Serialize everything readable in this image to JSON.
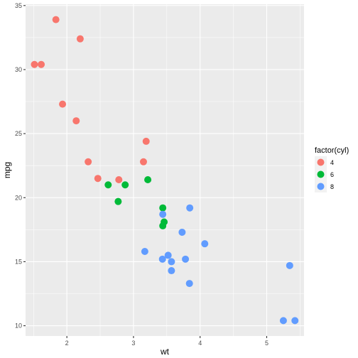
{
  "chart_data": {
    "type": "scatter",
    "xlabel": "wt",
    "ylabel": "mpg",
    "xlim": [
      1.38,
      5.56
    ],
    "ylim": [
      9.2,
      35.1
    ],
    "x_ticks": [
      2,
      3,
      4,
      5
    ],
    "y_ticks": [
      10,
      15,
      20,
      25,
      30,
      35
    ],
    "grid": true,
    "legend": {
      "title": "factor(cyl)",
      "placement": "right"
    },
    "series": [
      {
        "name": "4",
        "color": "#F8766D",
        "points": [
          {
            "x": 2.32,
            "y": 22.8
          },
          {
            "x": 3.19,
            "y": 24.4
          },
          {
            "x": 3.15,
            "y": 22.8
          },
          {
            "x": 2.2,
            "y": 32.4
          },
          {
            "x": 1.615,
            "y": 30.4
          },
          {
            "x": 1.835,
            "y": 33.9
          },
          {
            "x": 2.465,
            "y": 21.5
          },
          {
            "x": 1.935,
            "y": 27.3
          },
          {
            "x": 2.14,
            "y": 26.0
          },
          {
            "x": 1.513,
            "y": 30.4
          },
          {
            "x": 2.78,
            "y": 21.4
          }
        ]
      },
      {
        "name": "6",
        "color": "#00BA38",
        "points": [
          {
            "x": 2.62,
            "y": 21.0
          },
          {
            "x": 2.875,
            "y": 21.0
          },
          {
            "x": 3.215,
            "y": 21.4
          },
          {
            "x": 3.46,
            "y": 18.1
          },
          {
            "x": 3.44,
            "y": 19.2
          },
          {
            "x": 3.44,
            "y": 17.8
          },
          {
            "x": 2.77,
            "y": 19.7
          }
        ]
      },
      {
        "name": "8",
        "color": "#619CFF",
        "points": [
          {
            "x": 3.44,
            "y": 18.7
          },
          {
            "x": 3.57,
            "y": 14.3
          },
          {
            "x": 4.07,
            "y": 16.4
          },
          {
            "x": 3.73,
            "y": 17.3
          },
          {
            "x": 3.78,
            "y": 15.2
          },
          {
            "x": 5.25,
            "y": 10.4
          },
          {
            "x": 5.424,
            "y": 10.4
          },
          {
            "x": 5.345,
            "y": 14.7
          },
          {
            "x": 3.52,
            "y": 15.5
          },
          {
            "x": 3.435,
            "y": 15.2
          },
          {
            "x": 3.84,
            "y": 13.3
          },
          {
            "x": 3.845,
            "y": 19.2
          },
          {
            "x": 3.17,
            "y": 15.8
          },
          {
            "x": 3.57,
            "y": 15.0
          }
        ]
      }
    ]
  },
  "colors": {
    "panel_background": "#EBEBEB",
    "major_grid": "#FFFFFF",
    "legend_key_background": "#F2F2F2"
  }
}
